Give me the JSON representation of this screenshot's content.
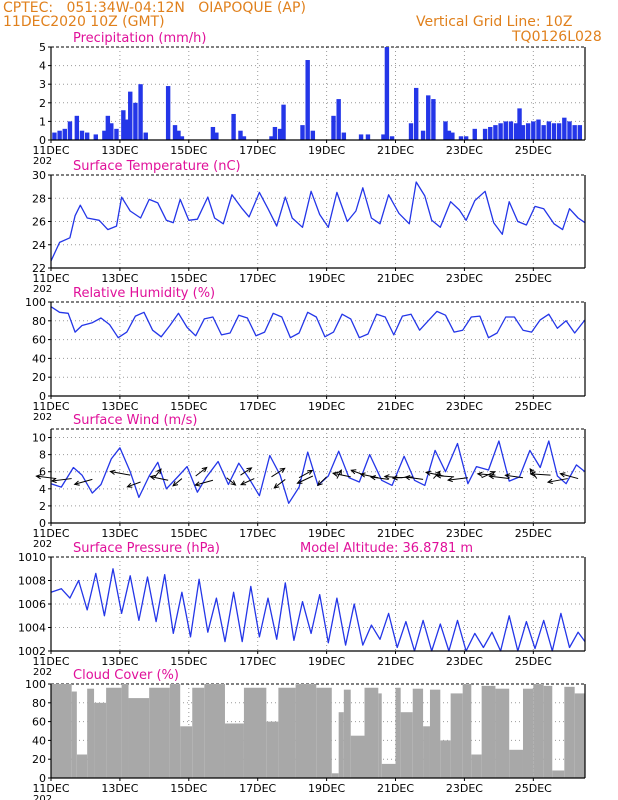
{
  "header": {
    "line1": "CPTEC:   051:34W-04:12N   OIAPOQUE (AP)",
    "line2": "11DEC2020 10Z (GMT)",
    "grid_note": "Vertical Grid Line: 10Z",
    "code": "TQ0126L028"
  },
  "colors": {
    "header": "#e0801c",
    "title": "#e0109a",
    "series": "#2436e8",
    "cloud": "#a8a8a8",
    "axis": "#000000",
    "grid": "#9a9a9a"
  },
  "x_axis": {
    "ticks": [
      "11DEC",
      "13DEC",
      "15DEC",
      "17DEC",
      "19DEC",
      "21DEC",
      "23DEC",
      "25DEC"
    ],
    "partial_label": "202"
  },
  "chart_data": [
    {
      "id": "precip",
      "type": "bar",
      "title": "Precipitation (mm/h)",
      "ylim": [
        0,
        5
      ],
      "yticks": [
        "0",
        "1",
        "2",
        "3",
        "4",
        "5"
      ],
      "grid": true,
      "xlim_days": [
        0,
        15.5
      ],
      "x_days": [
        0.1,
        0.25,
        0.4,
        0.55,
        0.75,
        0.9,
        1.05,
        1.3,
        1.55,
        1.65,
        1.75,
        1.9,
        2.1,
        2.2,
        2.3,
        2.45,
        2.6,
        2.75,
        3.4,
        3.6,
        3.7,
        3.8,
        4.7,
        4.8,
        5.3,
        5.5,
        5.6,
        6.4,
        6.5,
        6.65,
        6.75,
        7.3,
        7.45,
        7.6,
        8.2,
        8.35,
        8.5,
        9.0,
        9.2,
        9.65,
        9.75,
        9.9,
        10.45,
        10.6,
        10.8,
        10.95,
        11.1,
        11.45,
        11.55,
        11.65,
        11.9,
        12.05,
        12.3,
        12.6,
        12.75,
        12.9,
        13.05,
        13.2,
        13.35,
        13.5,
        13.6,
        13.7,
        13.85,
        14.0,
        14.15,
        14.3,
        14.45,
        14.6,
        14.75,
        14.9,
        15.05,
        15.2,
        15.35
      ],
      "values": [
        0.4,
        0.5,
        0.6,
        1.0,
        1.3,
        0.5,
        0.4,
        0.3,
        0.5,
        1.3,
        0.9,
        0.6,
        1.6,
        1.1,
        2.6,
        2.0,
        3.0,
        0.4,
        2.9,
        0.8,
        0.5,
        0.2,
        0.7,
        0.4,
        1.4,
        0.5,
        0.2,
        0.2,
        0.7,
        0.6,
        1.9,
        0.8,
        4.3,
        0.5,
        1.3,
        2.2,
        0.4,
        0.3,
        0.3,
        0.3,
        5.0,
        0.2,
        0.9,
        2.8,
        0.5,
        2.4,
        2.2,
        1.0,
        0.5,
        0.4,
        0.2,
        0.2,
        0.6,
        0.6,
        0.7,
        0.8,
        0.9,
        1.0,
        1.0,
        0.9,
        1.7,
        0.8,
        0.9,
        1.0,
        1.1,
        0.8,
        1.0,
        0.9,
        0.9,
        1.2,
        1.0,
        0.8,
        0.8
      ]
    },
    {
      "id": "temp",
      "type": "line",
      "title": "Surface Temperature (nC)",
      "ylim": [
        22,
        30
      ],
      "yticks": [
        "22",
        "24",
        "26",
        "28",
        "30"
      ],
      "grid": true,
      "xlim_days": [
        0,
        15.5
      ],
      "x_days": [
        0.0,
        0.25,
        0.55,
        0.7,
        0.85,
        1.05,
        1.4,
        1.65,
        1.9,
        2.05,
        2.3,
        2.6,
        2.85,
        3.1,
        3.35,
        3.55,
        3.75,
        4.0,
        4.25,
        4.55,
        4.75,
        5.0,
        5.25,
        5.55,
        5.75,
        6.05,
        6.3,
        6.55,
        6.8,
        7.0,
        7.3,
        7.55,
        7.8,
        8.05,
        8.3,
        8.6,
        8.85,
        9.05,
        9.3,
        9.55,
        9.8,
        10.1,
        10.4,
        10.6,
        10.85,
        11.05,
        11.3,
        11.6,
        11.85,
        12.05,
        12.3,
        12.6,
        12.85,
        13.1,
        13.3,
        13.55,
        13.8,
        14.05,
        14.3,
        14.6,
        14.85,
        15.05,
        15.3,
        15.5
      ],
      "values": [
        22.6,
        24.2,
        24.6,
        26.5,
        27.4,
        26.3,
        26.1,
        25.3,
        25.6,
        28.1,
        26.9,
        26.3,
        27.9,
        27.6,
        26.1,
        25.9,
        27.9,
        26.1,
        26.2,
        28.1,
        26.3,
        25.8,
        28.3,
        27.1,
        26.4,
        28.5,
        27.1,
        25.6,
        28.1,
        26.3,
        25.5,
        28.6,
        26.6,
        25.5,
        28.5,
        26.0,
        26.9,
        28.9,
        26.3,
        25.8,
        28.3,
        26.7,
        25.8,
        29.4,
        28.2,
        26.1,
        25.5,
        27.7,
        27.0,
        26.1,
        27.8,
        28.6,
        25.9,
        24.9,
        27.7,
        26.0,
        25.7,
        27.3,
        27.1,
        25.8,
        25.3,
        27.1,
        26.3,
        25.9
      ]
    },
    {
      "id": "rh",
      "type": "line",
      "title": "Relative Humidity (%)",
      "ylim": [
        0,
        100
      ],
      "yticks": [
        "0",
        "20",
        "40",
        "60",
        "80",
        "100"
      ],
      "grid": true,
      "xlim_days": [
        0,
        15.5
      ],
      "x_days": [
        0.0,
        0.25,
        0.5,
        0.7,
        0.9,
        1.2,
        1.45,
        1.7,
        1.95,
        2.2,
        2.45,
        2.7,
        2.95,
        3.2,
        3.45,
        3.7,
        3.95,
        4.2,
        4.45,
        4.7,
        4.95,
        5.2,
        5.45,
        5.7,
        5.95,
        6.2,
        6.45,
        6.7,
        6.95,
        7.2,
        7.45,
        7.7,
        7.95,
        8.2,
        8.45,
        8.7,
        8.95,
        9.2,
        9.45,
        9.7,
        9.95,
        10.2,
        10.45,
        10.7,
        10.95,
        11.2,
        11.45,
        11.7,
        11.95,
        12.2,
        12.45,
        12.7,
        12.95,
        13.2,
        13.45,
        13.7,
        13.95,
        14.2,
        14.45,
        14.7,
        14.95,
        15.2,
        15.5
      ],
      "values": [
        95,
        89,
        88,
        68,
        75,
        78,
        83,
        76,
        62,
        68,
        85,
        89,
        70,
        63,
        75,
        88,
        73,
        64,
        82,
        84,
        65,
        67,
        86,
        83,
        64,
        68,
        88,
        84,
        62,
        67,
        89,
        84,
        63,
        68,
        87,
        82,
        62,
        66,
        87,
        84,
        65,
        85,
        87,
        70,
        80,
        90,
        86,
        68,
        70,
        84,
        85,
        62,
        67,
        84,
        84,
        70,
        68,
        81,
        87,
        72,
        80,
        67,
        81
      ]
    },
    {
      "id": "wind",
      "type": "line",
      "title": "Surface Wind (m/s)",
      "ylim": [
        0,
        11
      ],
      "yticks": [
        "0",
        "2",
        "4",
        "6",
        "8",
        "10"
      ],
      "grid": true,
      "xlim_days": [
        0,
        15.5
      ],
      "x_days": [
        0.0,
        0.3,
        0.65,
        0.9,
        1.2,
        1.45,
        1.75,
        2.0,
        2.3,
        2.55,
        2.85,
        3.1,
        3.35,
        3.7,
        3.95,
        4.25,
        4.5,
        4.85,
        5.15,
        5.45,
        5.75,
        6.05,
        6.35,
        6.65,
        6.9,
        7.2,
        7.45,
        7.75,
        8.05,
        8.35,
        8.65,
        8.95,
        9.25,
        9.6,
        9.9,
        10.25,
        10.55,
        10.85,
        11.15,
        11.45,
        11.8,
        12.1,
        12.35,
        12.7,
        13.0,
        13.3,
        13.6,
        13.9,
        14.2,
        14.45,
        14.7,
        14.95,
        15.25,
        15.5
      ],
      "values": [
        4.6,
        4.2,
        6.5,
        5.6,
        3.5,
        4.5,
        7.5,
        8.8,
        6.0,
        3.0,
        5.5,
        7.1,
        4.0,
        5.5,
        6.6,
        3.6,
        5.3,
        7.2,
        4.5,
        7.0,
        5.2,
        3.2,
        7.9,
        5.6,
        2.3,
        4.2,
        8.3,
        4.4,
        5.5,
        8.4,
        5.3,
        4.8,
        8.0,
        5.0,
        4.4,
        7.8,
        5.0,
        4.4,
        8.5,
        6.0,
        9.3,
        4.6,
        6.6,
        6.2,
        9.6,
        4.9,
        5.4,
        8.5,
        6.5,
        9.6,
        5.5,
        4.6,
        6.8,
        6.0
      ],
      "vectors_x_days": [
        0.15,
        0.6,
        1.2,
        2.3,
        2.6,
        3.0,
        3.4,
        3.8,
        4.2,
        4.7,
        5.1,
        5.5,
        5.9,
        6.4,
        6.8,
        7.2,
        7.6,
        8.0,
        8.3,
        8.7,
        9.1,
        9.5,
        9.8,
        10.2,
        10.5,
        10.8,
        11.1,
        11.4,
        11.7,
        12.1,
        12.5,
        12.9,
        13.3,
        13.7,
        14.1,
        14.5,
        15.0,
        15.3
      ],
      "vectors_y": [
        5.2,
        5.2,
        5.1,
        5.6,
        4.8,
        5.3,
        5.0,
        5.2,
        5.5,
        5.0,
        5.3,
        5.6,
        5.2,
        5.4,
        5.1,
        5.3,
        5.5,
        5.4,
        5.2,
        5.4,
        5.6,
        5.3,
        5.1,
        5.3,
        5.4,
        5.1,
        5.2,
        5.5,
        5.4,
        5.3,
        5.3,
        5.6,
        5.2,
        5.3,
        5.2,
        5.6,
        5.2,
        5.2
      ],
      "vectors_u": [
        -0.9,
        -0.9,
        -0.8,
        -0.9,
        -0.6,
        0.3,
        -0.8,
        -0.4,
        0.5,
        -0.8,
        0.4,
        0.5,
        -0.6,
        0.6,
        -0.5,
        0.6,
        -0.7,
        -0.4,
        0.2,
        -0.8,
        -0.6,
        -0.8,
        -0.8,
        -0.8,
        -0.9,
        -0.8,
        0.3,
        -0.8,
        -0.8,
        -0.9,
        0.6,
        -0.8,
        -0.9,
        -0.8,
        -0.3,
        -0.9,
        -0.9,
        -0.8
      ],
      "vectors_v": [
        0.2,
        -0.2,
        -0.4,
        0.3,
        -0.4,
        0.7,
        0.3,
        -0.6,
        0.7,
        -0.4,
        -0.6,
        0.6,
        -0.5,
        0.7,
        -0.7,
        0.6,
        -0.6,
        -0.7,
        0.7,
        0.3,
        0.4,
        0.3,
        0.2,
        0.1,
        -0.1,
        0.2,
        0.6,
        0.3,
        0.1,
        -0.2,
        0.5,
        0.1,
        0.2,
        0.2,
        0.8,
        0.1,
        -0.3,
        0.4
      ]
    },
    {
      "id": "pressure",
      "type": "line",
      "title": "Surface Pressure (hPa)",
      "annotation": "Model Altitude: 36.8781 m",
      "ylim": [
        1002,
        1010
      ],
      "yticks": [
        "1002",
        "1004",
        "1006",
        "1008",
        "1010"
      ],
      "grid": true,
      "xlim_days": [
        0,
        15.5
      ],
      "x_days": [
        0.0,
        0.3,
        0.55,
        0.8,
        1.05,
        1.3,
        1.55,
        1.8,
        2.05,
        2.3,
        2.55,
        2.8,
        3.05,
        3.3,
        3.55,
        3.8,
        4.05,
        4.3,
        4.55,
        4.8,
        5.05,
        5.3,
        5.55,
        5.8,
        6.05,
        6.3,
        6.55,
        6.8,
        7.05,
        7.3,
        7.55,
        7.8,
        8.05,
        8.3,
        8.55,
        8.8,
        9.05,
        9.3,
        9.55,
        9.8,
        10.05,
        10.3,
        10.55,
        10.8,
        11.05,
        11.3,
        11.55,
        11.8,
        12.05,
        12.3,
        12.55,
        12.8,
        13.05,
        13.3,
        13.55,
        13.8,
        14.05,
        14.3,
        14.55,
        14.8,
        15.05,
        15.3,
        15.5
      ],
      "values": [
        1007.0,
        1007.3,
        1006.5,
        1008.0,
        1005.5,
        1008.6,
        1005.0,
        1009.0,
        1005.2,
        1008.4,
        1004.6,
        1008.3,
        1004.5,
        1008.5,
        1003.5,
        1007.0,
        1003.2,
        1008.1,
        1003.6,
        1006.5,
        1002.8,
        1007.0,
        1002.8,
        1007.5,
        1003.2,
        1006.5,
        1003.0,
        1007.8,
        1002.9,
        1006.2,
        1003.5,
        1006.8,
        1002.7,
        1006.5,
        1002.5,
        1006.0,
        1002.5,
        1004.2,
        1003.0,
        1005.2,
        1002.3,
        1004.5,
        1002.0,
        1004.6,
        1002.0,
        1004.3,
        1002.0,
        1004.6,
        1002.0,
        1003.5,
        1002.3,
        1003.6,
        1002.0,
        1005.0,
        1002.0,
        1004.5,
        1002.2,
        1004.6,
        1002.0,
        1005.2,
        1002.3,
        1003.6,
        1002.8
      ]
    },
    {
      "id": "cloud",
      "type": "area",
      "title": "Cloud Cover (%)",
      "ylim": [
        0,
        100
      ],
      "yticks": [
        "0",
        "20",
        "40",
        "60",
        "80",
        "100"
      ],
      "grid": true,
      "xlim_days": [
        0,
        15.5
      ],
      "x_days": [
        0.0,
        0.6,
        0.75,
        1.05,
        1.25,
        1.6,
        2.05,
        2.25,
        2.85,
        3.45,
        3.75,
        4.1,
        4.45,
        5.05,
        5.6,
        6.25,
        6.6,
        7.1,
        7.7,
        8.15,
        8.35,
        8.5,
        8.7,
        9.1,
        9.5,
        9.6,
        10.0,
        10.15,
        10.5,
        10.8,
        11.0,
        11.3,
        11.6,
        11.95,
        12.2,
        12.5,
        12.9,
        13.3,
        13.7,
        14.0,
        14.3,
        14.55,
        14.9,
        15.2,
        15.5
      ],
      "values": [
        100,
        92,
        25,
        95,
        80,
        96,
        100,
        85,
        96,
        100,
        55,
        96,
        100,
        58,
        96,
        60,
        96,
        100,
        96,
        5,
        70,
        94,
        45,
        96,
        90,
        15,
        96,
        70,
        95,
        55,
        94,
        40,
        90,
        100,
        25,
        98,
        95,
        30,
        95,
        100,
        98,
        8,
        97,
        90,
        100
      ]
    }
  ]
}
